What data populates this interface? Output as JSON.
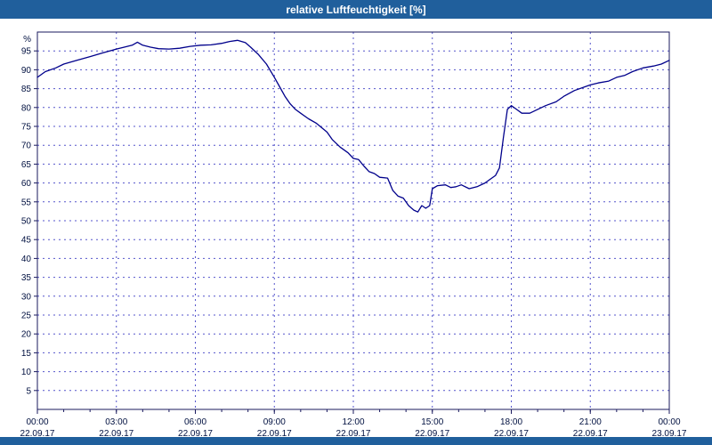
{
  "title": "relative Luftfeuchtigkeit [%]",
  "colors": {
    "titlebar_bg": "#205f9c",
    "titlebar_text": "#ffffff",
    "plot_bg": "#ffffff",
    "grid": "#5555cc",
    "axis": "#1a1a5e",
    "tick_label": "#001040",
    "line": "#00008b"
  },
  "chart_data": {
    "type": "line",
    "title": "relative Luftfeuchtigkeit [%]",
    "xlabel": "",
    "ylabel": "%",
    "ylim": [
      0,
      100
    ],
    "yticks": [
      5,
      10,
      15,
      20,
      25,
      30,
      35,
      40,
      45,
      50,
      55,
      60,
      65,
      70,
      75,
      80,
      85,
      90,
      95
    ],
    "xlim_hours": [
      0,
      24
    ],
    "grid": true,
    "legend": "none",
    "xticks": [
      {
        "hour": 0,
        "time": "00:00",
        "date": "22.09.17"
      },
      {
        "hour": 3,
        "time": "03:00",
        "date": "22.09.17"
      },
      {
        "hour": 6,
        "time": "06:00",
        "date": "22.09.17"
      },
      {
        "hour": 9,
        "time": "09:00",
        "date": "22.09.17"
      },
      {
        "hour": 12,
        "time": "12:00",
        "date": "22.09.17"
      },
      {
        "hour": 15,
        "time": "15:00",
        "date": "22.09.17"
      },
      {
        "hour": 18,
        "time": "18:00",
        "date": "22.09.17"
      },
      {
        "hour": 21,
        "time": "21:00",
        "date": "22.09.17"
      },
      {
        "hour": 24,
        "time": "00:00",
        "date": "23.09.17"
      }
    ],
    "series": [
      {
        "name": "relative Luftfeuchtigkeit [%]",
        "points": [
          [
            0.0,
            88.0
          ],
          [
            0.3,
            89.5
          ],
          [
            0.7,
            90.5
          ],
          [
            1.0,
            91.5
          ],
          [
            1.5,
            92.5
          ],
          [
            2.0,
            93.5
          ],
          [
            2.5,
            94.5
          ],
          [
            3.0,
            95.5
          ],
          [
            3.3,
            96.0
          ],
          [
            3.6,
            96.5
          ],
          [
            3.8,
            97.3
          ],
          [
            4.0,
            96.5
          ],
          [
            4.3,
            96.0
          ],
          [
            4.6,
            95.6
          ],
          [
            5.0,
            95.5
          ],
          [
            5.4,
            95.7
          ],
          [
            5.8,
            96.2
          ],
          [
            6.2,
            96.5
          ],
          [
            6.6,
            96.6
          ],
          [
            7.0,
            97.0
          ],
          [
            7.3,
            97.5
          ],
          [
            7.6,
            97.8
          ],
          [
            7.9,
            97.2
          ],
          [
            8.1,
            96.0
          ],
          [
            8.4,
            94.0
          ],
          [
            8.7,
            91.5
          ],
          [
            9.0,
            88.0
          ],
          [
            9.2,
            85.5
          ],
          [
            9.4,
            83.0
          ],
          [
            9.6,
            81.0
          ],
          [
            9.8,
            79.5
          ],
          [
            10.0,
            78.5
          ],
          [
            10.3,
            77.0
          ],
          [
            10.6,
            75.8
          ],
          [
            11.0,
            73.5
          ],
          [
            11.2,
            71.5
          ],
          [
            11.5,
            69.5
          ],
          [
            11.8,
            68.0
          ],
          [
            12.0,
            66.5
          ],
          [
            12.2,
            66.2
          ],
          [
            12.4,
            64.5
          ],
          [
            12.6,
            63.0
          ],
          [
            12.8,
            62.5
          ],
          [
            13.0,
            61.5
          ],
          [
            13.3,
            61.3
          ],
          [
            13.5,
            58.0
          ],
          [
            13.7,
            56.5
          ],
          [
            13.9,
            56.0
          ],
          [
            14.1,
            54.0
          ],
          [
            14.3,
            52.8
          ],
          [
            14.45,
            52.3
          ],
          [
            14.6,
            54.0
          ],
          [
            14.75,
            53.3
          ],
          [
            14.9,
            54.0
          ],
          [
            15.0,
            58.5
          ],
          [
            15.2,
            59.3
          ],
          [
            15.5,
            59.5
          ],
          [
            15.7,
            58.8
          ],
          [
            15.9,
            59.0
          ],
          [
            16.1,
            59.5
          ],
          [
            16.4,
            58.5
          ],
          [
            16.7,
            59.0
          ],
          [
            17.0,
            60.0
          ],
          [
            17.2,
            61.0
          ],
          [
            17.4,
            62.0
          ],
          [
            17.55,
            64.0
          ],
          [
            17.7,
            72.0
          ],
          [
            17.85,
            79.5
          ],
          [
            18.0,
            80.5
          ],
          [
            18.2,
            79.5
          ],
          [
            18.4,
            78.5
          ],
          [
            18.7,
            78.5
          ],
          [
            19.0,
            79.5
          ],
          [
            19.3,
            80.5
          ],
          [
            19.7,
            81.5
          ],
          [
            20.0,
            83.0
          ],
          [
            20.4,
            84.5
          ],
          [
            20.8,
            85.5
          ],
          [
            21.0,
            86.0
          ],
          [
            21.3,
            86.5
          ],
          [
            21.7,
            87.0
          ],
          [
            22.0,
            88.0
          ],
          [
            22.3,
            88.5
          ],
          [
            22.6,
            89.5
          ],
          [
            23.0,
            90.5
          ],
          [
            23.4,
            91.0
          ],
          [
            23.7,
            91.5
          ],
          [
            24.0,
            92.5
          ]
        ]
      }
    ]
  }
}
